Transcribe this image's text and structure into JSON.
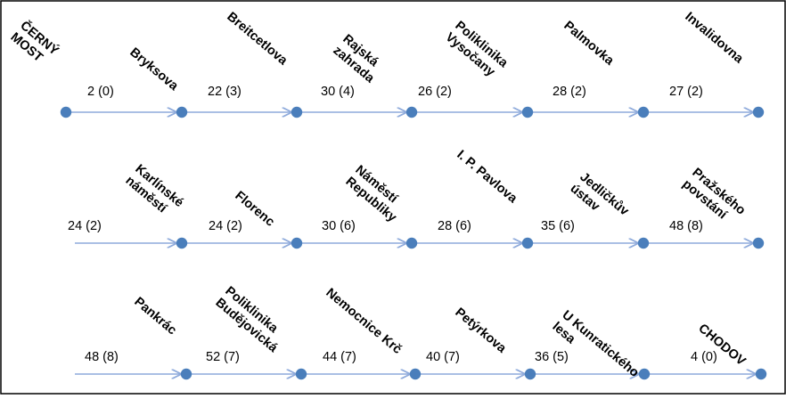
{
  "rows": [
    {
      "stations": [
        {
          "lines": [
            "ČERNÝ",
            "MOST"
          ]
        },
        {
          "lines": [
            "Bryksova"
          ]
        },
        {
          "lines": [
            "Breitcetlova"
          ]
        },
        {
          "lines": [
            "Rajská",
            "zahrada"
          ]
        },
        {
          "lines": [
            "Poliklinika",
            "Vysočany"
          ]
        },
        {
          "lines": [
            "Palmovka"
          ]
        },
        {
          "lines": [
            "Invalidovna"
          ]
        }
      ],
      "segments": [
        "2 (0)",
        "22 (3)",
        "30 (4)",
        "26 (2)",
        "28 (2)",
        "27 (2)"
      ]
    },
    {
      "stations": [
        {
          "lines": [
            "Karlínské",
            "náměstí"
          ]
        },
        {
          "lines": [
            "Florenc"
          ]
        },
        {
          "lines": [
            "Náměstí",
            "Republiky"
          ]
        },
        {
          "lines": [
            "I. P. Pavlova"
          ]
        },
        {
          "lines": [
            "Jedličkův",
            "ústav"
          ]
        },
        {
          "lines": [
            "Pražského",
            "povstání"
          ]
        }
      ],
      "segments": [
        "24 (2)",
        "24 (2)",
        "30 (6)",
        "28 (6)",
        "35 (6)",
        "48 (8)"
      ]
    },
    {
      "stations": [
        {
          "lines": [
            "Pankrác"
          ]
        },
        {
          "lines": [
            "Poliklinika",
            "Budějovická"
          ]
        },
        {
          "lines": [
            "Nemocnice Krč"
          ]
        },
        {
          "lines": [
            "Petýrkova"
          ]
        },
        {
          "lines": [
            "U Kunratického",
            "lesa"
          ]
        },
        {
          "lines": [
            "CHODOV"
          ]
        }
      ],
      "segments": [
        "48 (8)",
        "52 (7)",
        "44 (7)",
        "40 (7)",
        "36 (5)",
        "4 (0)"
      ]
    }
  ],
  "colors": {
    "line": "#8eaadb",
    "dot": "#4a7ebb",
    "frame": "#000000"
  }
}
